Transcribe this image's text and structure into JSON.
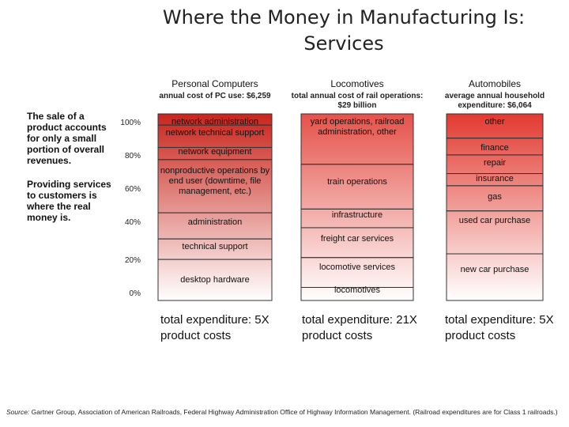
{
  "title_line1": "Where the Money in Manufacturing Is:",
  "title_line2": "Services",
  "side_notes": {
    "note1": "The sale of a product accounts for only a small portion of overall revenues.",
    "note2": "Providing services to customers is where the real money is."
  },
  "colors": {
    "pc_top": "#c9251c",
    "pc_bottom": "#ffffff",
    "loco_top": "#e5524a",
    "loco_bottom": "#ffffff",
    "auto_top": "#e23a30",
    "auto_bottom": "#ffffff",
    "border": "#333333"
  },
  "chart_data": {
    "type": "bar",
    "title": "Where the Money in Manufacturing Is: Services",
    "ylabel": "",
    "ylim": [
      0,
      100
    ],
    "y_ticks": [
      "100%",
      "80%",
      "60%",
      "40%",
      "20%",
      "0%"
    ],
    "columns": [
      {
        "name": "Personal Computers",
        "subtitle": "annual cost of PC use: $6,259",
        "total": "total expenditure: 5X product costs",
        "segments": [
          {
            "label": "network administration",
            "from": 100,
            "to": 94
          },
          {
            "label": "network technical support",
            "from": 94,
            "to": 82
          },
          {
            "label": "network equipment",
            "from": 82,
            "to": 75.5
          },
          {
            "label": "nonproductive operations by end user (downtime, file management, etc.)",
            "from": 75.5,
            "to": 47
          },
          {
            "label": "administration",
            "from": 47,
            "to": 33
          },
          {
            "label": "technical support",
            "from": 33,
            "to": 22
          },
          {
            "label": "desktop hardware",
            "from": 22,
            "to": 0
          }
        ]
      },
      {
        "name": "Locomotives",
        "subtitle": "total annual cost of rail operations: $29 billion",
        "total": "total expenditure: 21X product costs",
        "segments": [
          {
            "label": "yard operations, railroad administration, other",
            "from": 100,
            "to": 73
          },
          {
            "label": "train operations",
            "from": 73,
            "to": 49
          },
          {
            "label": "infrastructure",
            "from": 49,
            "to": 39
          },
          {
            "label": "freight car services",
            "from": 39,
            "to": 23
          },
          {
            "label": "locomotive services",
            "from": 23,
            "to": 7
          },
          {
            "label": "locomotives",
            "from": 7,
            "to": 0
          }
        ]
      },
      {
        "name": "Automobiles",
        "subtitle": "average annual household expenditure: $6,064",
        "total": "total expenditure: 5X product costs",
        "segments": [
          {
            "label": "other",
            "from": 100,
            "to": 87
          },
          {
            "label": "finance",
            "from": 87,
            "to": 78
          },
          {
            "label": "repair",
            "from": 78,
            "to": 68
          },
          {
            "label": "insurance",
            "from": 68,
            "to": 61.5
          },
          {
            "label": "gas",
            "from": 61.5,
            "to": 48
          },
          {
            "label": "used car purchase",
            "from": 48,
            "to": 25
          },
          {
            "label": "new car purchase",
            "from": 25,
            "to": 0
          }
        ]
      }
    ]
  },
  "source": {
    "prefix": "Source:",
    "text": " Gartner Group, Association of American Railroads, Federal Highway Administration Office of Highway Information Management. (Railroad expenditures are for Class 1 railroads.)"
  }
}
